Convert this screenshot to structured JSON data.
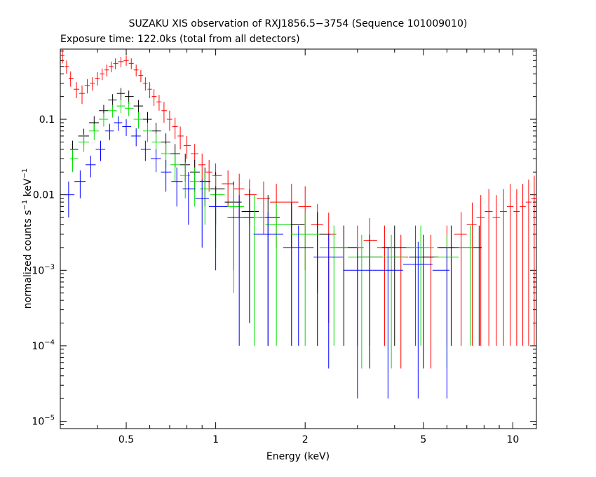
{
  "chart_data": {
    "type": "scatter",
    "title": "SUZAKU XIS observation of RXJ1856.5−3754 (Sequence 101009010)",
    "subtitle": "Exposure time: 122.0ks (total from all detectors)",
    "xlabel": "Energy (keV)",
    "ylabel": {
      "main": "normalized counts s",
      "sup1": "−1",
      "mid": " keV",
      "sup2": "−1"
    },
    "x_scale": "log",
    "y_scale": "log",
    "xlim": [
      0.3,
      12
    ],
    "ylim": [
      8e-06,
      0.85
    ],
    "x_ticks": [
      {
        "value": 0.5,
        "label": "0.5"
      },
      {
        "value": 1,
        "label": "1"
      },
      {
        "value": 2,
        "label": "2"
      },
      {
        "value": 5,
        "label": "5"
      },
      {
        "value": 10,
        "label": "10"
      }
    ],
    "y_ticks": [
      {
        "value": 1e-05,
        "mant": "10",
        "exp": "−5"
      },
      {
        "value": 0.0001,
        "mant": "10",
        "exp": "−4"
      },
      {
        "value": 0.001,
        "mant": "10",
        "exp": "−3"
      },
      {
        "value": 0.01,
        "mant": "0.01",
        "exp": ""
      },
      {
        "value": 0.1,
        "mant": "0.1",
        "exp": ""
      }
    ],
    "grid": false,
    "legend": "none",
    "series": [
      {
        "color": "#ff0000",
        "points": [
          [
            0.305,
            0.7,
            0.15
          ],
          [
            0.315,
            0.5,
            0.1
          ],
          [
            0.325,
            0.35,
            0.08
          ],
          [
            0.34,
            0.25,
            0.06
          ],
          [
            0.355,
            0.22,
            0.06
          ],
          [
            0.37,
            0.28,
            0.06
          ],
          [
            0.385,
            0.3,
            0.06
          ],
          [
            0.4,
            0.35,
            0.07
          ],
          [
            0.415,
            0.4,
            0.07
          ],
          [
            0.43,
            0.45,
            0.08
          ],
          [
            0.445,
            0.5,
            0.08
          ],
          [
            0.46,
            0.55,
            0.09
          ],
          [
            0.48,
            0.58,
            0.09
          ],
          [
            0.5,
            0.6,
            0.09
          ],
          [
            0.52,
            0.55,
            0.09
          ],
          [
            0.54,
            0.45,
            0.08
          ],
          [
            0.56,
            0.38,
            0.07
          ],
          [
            0.58,
            0.3,
            0.06
          ],
          [
            0.6,
            0.25,
            0.06
          ],
          [
            0.62,
            0.2,
            0.05
          ],
          [
            0.645,
            0.17,
            0.04
          ],
          [
            0.67,
            0.13,
            0.04
          ],
          [
            0.7,
            0.1,
            0.03
          ],
          [
            0.73,
            0.08,
            0.025
          ],
          [
            0.76,
            0.06,
            0.02
          ],
          [
            0.8,
            0.045,
            0.015
          ],
          [
            0.85,
            0.035,
            0.012
          ],
          [
            0.9,
            0.025,
            0.01
          ],
          [
            0.95,
            0.02,
            0.009
          ],
          [
            1.0,
            0.018,
            0.008
          ],
          [
            1.1,
            0.014,
            0.007
          ],
          [
            1.2,
            0.012,
            0.007
          ],
          [
            1.3,
            0.01,
            0.006
          ],
          [
            1.45,
            0.009,
            0.006
          ],
          [
            1.6,
            0.008,
            0.006
          ],
          [
            1.8,
            0.008,
            0.006
          ],
          [
            2.0,
            0.007,
            0.006
          ],
          [
            2.2,
            0.004,
            0.0035
          ],
          [
            2.4,
            0.003,
            0.0028
          ],
          [
            2.7,
            0.002,
            0.0019
          ],
          [
            3.0,
            0.002,
            0.0019
          ],
          [
            3.3,
            0.0025,
            0.0024
          ],
          [
            3.7,
            0.002,
            0.0019
          ],
          [
            4.2,
            0.0015,
            0.00145
          ],
          [
            4.7,
            0.002,
            0.0019
          ],
          [
            5.3,
            0.0015,
            0.00145
          ],
          [
            6.0,
            0.002,
            0.0019
          ],
          [
            6.7,
            0.003,
            0.0029
          ],
          [
            7.3,
            0.004,
            0.0039
          ],
          [
            7.8,
            0.005,
            0.0049
          ],
          [
            8.3,
            0.006,
            0.0059
          ],
          [
            8.8,
            0.005,
            0.0049
          ],
          [
            9.3,
            0.006,
            0.0059
          ],
          [
            9.8,
            0.007,
            0.0069
          ],
          [
            10.3,
            0.006,
            0.0059
          ],
          [
            10.8,
            0.007,
            0.0069
          ],
          [
            11.3,
            0.008,
            0.0079
          ],
          [
            11.8,
            0.009,
            0.0089
          ]
        ]
      },
      {
        "color": "#000000",
        "points": [
          [
            0.33,
            0.04,
            0.012
          ],
          [
            0.36,
            0.06,
            0.015
          ],
          [
            0.39,
            0.09,
            0.02
          ],
          [
            0.42,
            0.13,
            0.025
          ],
          [
            0.45,
            0.18,
            0.035
          ],
          [
            0.48,
            0.22,
            0.04
          ],
          [
            0.51,
            0.2,
            0.04
          ],
          [
            0.55,
            0.15,
            0.03
          ],
          [
            0.59,
            0.1,
            0.025
          ],
          [
            0.63,
            0.07,
            0.02
          ],
          [
            0.68,
            0.05,
            0.015
          ],
          [
            0.73,
            0.035,
            0.012
          ],
          [
            0.79,
            0.025,
            0.01
          ],
          [
            0.85,
            0.02,
            0.009
          ],
          [
            0.92,
            0.015,
            0.008
          ],
          [
            1.0,
            0.012,
            0.008
          ],
          [
            1.15,
            0.008,
            0.007
          ],
          [
            1.3,
            0.006,
            0.0058
          ],
          [
            1.5,
            0.005,
            0.0049
          ],
          [
            1.8,
            0.004,
            0.0039
          ],
          [
            2.2,
            0.003,
            0.0029
          ],
          [
            2.7,
            0.002,
            0.0019
          ],
          [
            3.3,
            0.0015,
            0.00145
          ],
          [
            4.0,
            0.002,
            0.0019
          ],
          [
            5.0,
            0.0015,
            0.00145
          ],
          [
            6.2,
            0.002,
            0.0019
          ],
          [
            7.7,
            0.002,
            0.0019
          ]
        ]
      },
      {
        "color": "#00dd00",
        "points": [
          [
            0.33,
            0.03,
            0.01
          ],
          [
            0.36,
            0.05,
            0.013
          ],
          [
            0.39,
            0.07,
            0.017
          ],
          [
            0.42,
            0.1,
            0.02
          ],
          [
            0.45,
            0.13,
            0.025
          ],
          [
            0.48,
            0.15,
            0.03
          ],
          [
            0.51,
            0.14,
            0.03
          ],
          [
            0.55,
            0.1,
            0.025
          ],
          [
            0.59,
            0.07,
            0.02
          ],
          [
            0.63,
            0.05,
            0.015
          ],
          [
            0.68,
            0.035,
            0.012
          ],
          [
            0.73,
            0.025,
            0.01
          ],
          [
            0.79,
            0.018,
            0.009
          ],
          [
            0.85,
            0.015,
            0.008
          ],
          [
            0.92,
            0.012,
            0.008
          ],
          [
            1.0,
            0.01,
            0.008
          ],
          [
            1.15,
            0.007,
            0.0065
          ],
          [
            1.35,
            0.005,
            0.0049
          ],
          [
            1.6,
            0.004,
            0.0039
          ],
          [
            2.0,
            0.003,
            0.0029
          ],
          [
            2.5,
            0.002,
            0.0019
          ],
          [
            3.1,
            0.0015,
            0.00145
          ],
          [
            3.9,
            0.0015,
            0.00145
          ],
          [
            4.9,
            0.002,
            0.0019
          ],
          [
            6.0,
            0.0015,
            0.00145
          ],
          [
            7.2,
            0.002,
            0.0019
          ]
        ]
      },
      {
        "color": "#0000ff",
        "points": [
          [
            0.32,
            0.01,
            0.005
          ],
          [
            0.35,
            0.015,
            0.006
          ],
          [
            0.38,
            0.025,
            0.008
          ],
          [
            0.41,
            0.04,
            0.012
          ],
          [
            0.44,
            0.07,
            0.017
          ],
          [
            0.47,
            0.09,
            0.02
          ],
          [
            0.5,
            0.08,
            0.02
          ],
          [
            0.54,
            0.06,
            0.016
          ],
          [
            0.58,
            0.04,
            0.012
          ],
          [
            0.63,
            0.03,
            0.01
          ],
          [
            0.68,
            0.02,
            0.009
          ],
          [
            0.74,
            0.015,
            0.008
          ],
          [
            0.81,
            0.012,
            0.008
          ],
          [
            0.9,
            0.009,
            0.007
          ],
          [
            1.0,
            0.007,
            0.006
          ],
          [
            1.2,
            0.005,
            0.0049
          ],
          [
            1.5,
            0.003,
            0.0029
          ],
          [
            1.9,
            0.002,
            0.0019
          ],
          [
            2.4,
            0.0015,
            0.00145
          ],
          [
            3.0,
            0.001,
            0.00098
          ],
          [
            3.8,
            0.001,
            0.00098
          ],
          [
            4.8,
            0.0012,
            0.00118
          ],
          [
            6.0,
            0.001,
            0.00098
          ]
        ]
      }
    ]
  }
}
